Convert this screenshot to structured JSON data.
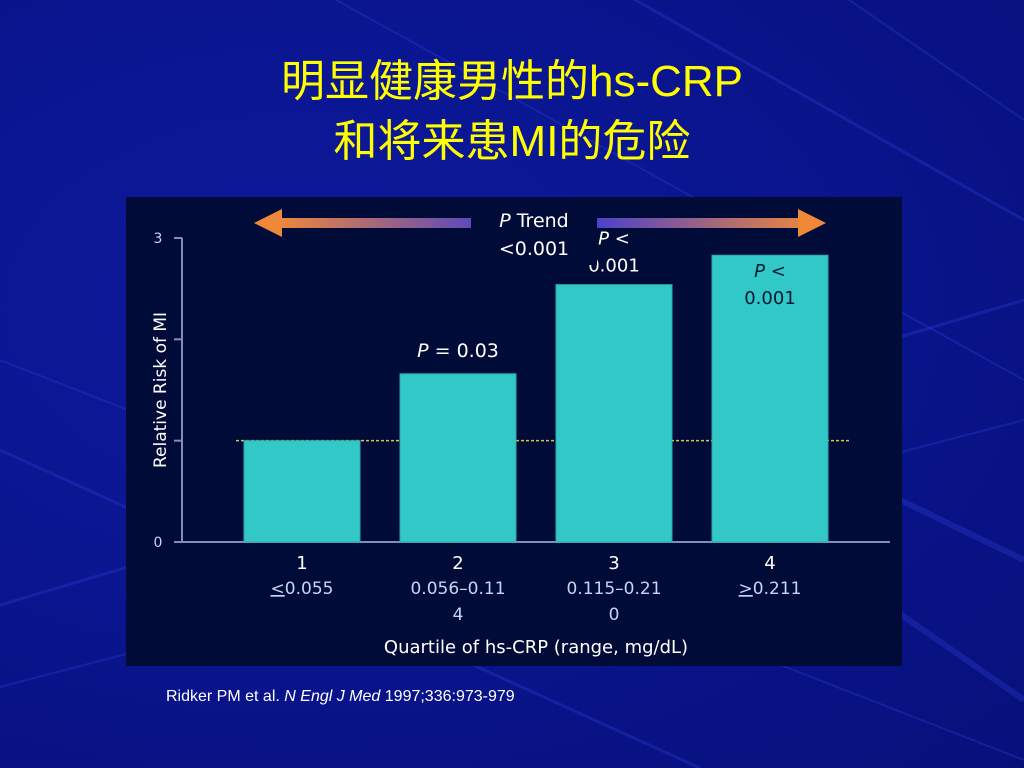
{
  "slide": {
    "title_line1": "明显健康男性的hs-CRP",
    "title_line2": "和将来患MI的危险"
  },
  "citation": {
    "authors": "Ridker PM et al.",
    "journal": "N Engl J Med",
    "ref": "1997;336:973-979"
  },
  "colors": {
    "background": "#0a1590",
    "title": "#ffff00",
    "bar": "#33c8c8",
    "panel": "#000b38",
    "reference_line": "#d4c84a",
    "arrow_left": "#f0883a",
    "arrow_right": "#f0883a"
  },
  "chart_data": {
    "type": "bar",
    "categories": [
      "1",
      "2",
      "3",
      "4"
    ],
    "category_ranges": [
      [
        "<0.055"
      ],
      [
        "0.056–0.11",
        "4"
      ],
      [
        "0.115–0.21",
        "0"
      ],
      [
        ">0.211"
      ]
    ],
    "underlined_prefix": [
      "<",
      "",
      "",
      ">"
    ],
    "values": [
      1.0,
      1.66,
      2.54,
      2.83
    ],
    "annotations": [
      "",
      "= 0.03",
      "<\n0.001",
      "<\n0.001"
    ],
    "annotation_p": "P",
    "trend_label_p": "P",
    "trend_label_rest": " Trend",
    "trend_value": "<0.001",
    "xlabel": "Quartile of hs-CRP (range, mg/dL)",
    "ylabel": "Relative Risk of MI",
    "yticks": [
      "0",
      "1",
      "2",
      "3"
    ],
    "yticks_visible_labels": [
      "0",
      "",
      "",
      "3"
    ],
    "ylim": [
      0,
      3
    ],
    "reference_value": 1.0
  }
}
